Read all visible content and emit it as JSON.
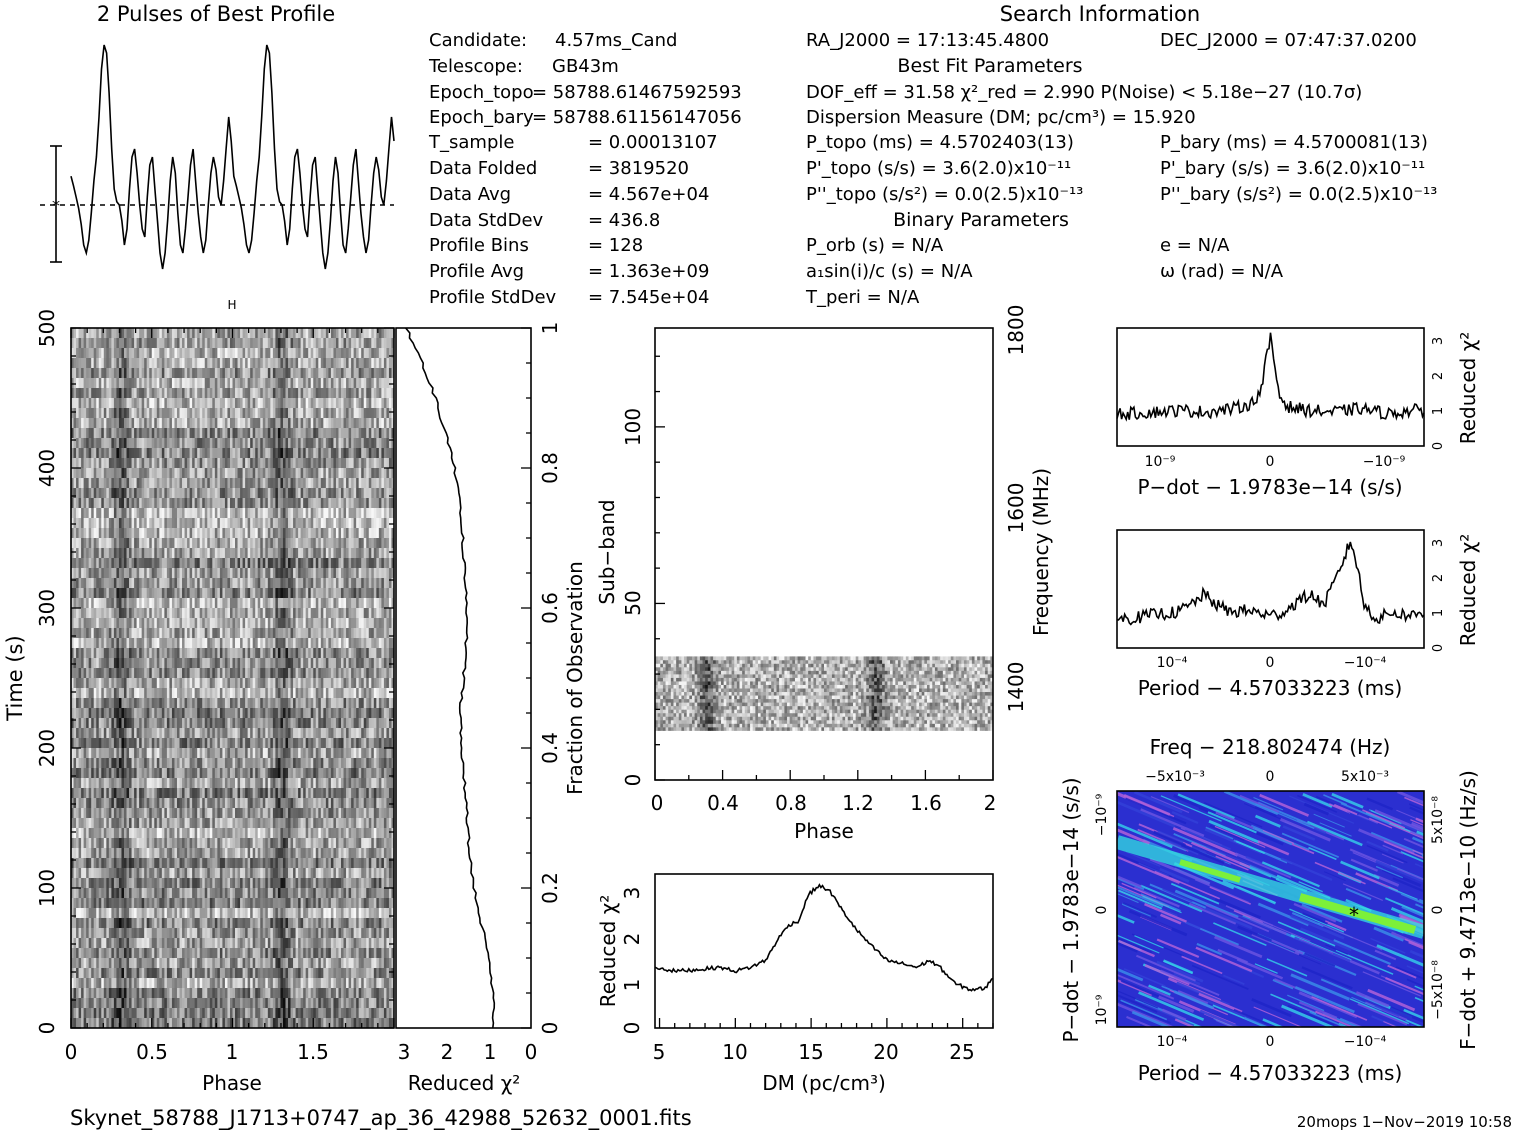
{
  "header": {
    "profile_title": "2 Pulses of Best Profile",
    "search_title": "Search Information",
    "best_fit_title": "Best Fit Parameters",
    "binary_title": "Binary Parameters"
  },
  "info_left": [
    {
      "label": "Candidate:",
      "value": "4.57ms_Cand"
    },
    {
      "label": "Telescope:",
      "value": "GB43m"
    },
    {
      "label": "Epoch_topo",
      "value": "= 58788.61467592593"
    },
    {
      "label": "Epoch_bary",
      "value": "= 58788.61156147056"
    },
    {
      "label": "T_sample",
      "value": "=   0.00013107"
    },
    {
      "label": "Data Folded",
      "value": "=   3819520"
    },
    {
      "label": "Data Avg",
      "value": "=   4.567e+04"
    },
    {
      "label": "Data StdDev",
      "value": "=   436.8"
    },
    {
      "label": "Profile Bins",
      "value": "=   128"
    },
    {
      "label": "Profile Avg",
      "value": "=   1.363e+09"
    },
    {
      "label": "Profile StdDev",
      "value": "=   7.545e+04"
    }
  ],
  "info_mid": {
    "ra": "RA_J2000 = 17:13:45.4800",
    "dof": "DOF_eff = 31.58  χ²_red = 2.990  P(Noise) < 5.18e−27  (10.7σ)",
    "dm": "Dispersion Measure (DM; pc/cm³) = 15.920",
    "p_topo": "P_topo (ms) =  4.5702403(13)",
    "pd_topo": "P'_topo (s/s) =  3.6(2.0)x10⁻¹¹",
    "pdd_topo": "P''_topo (s/s²) = 0.0(2.5)x10⁻¹³",
    "p_orb": "P_orb (s) = N/A",
    "a1sini": "a₁sin(i)/c (s) = N/A",
    "t_peri": "T_peri = N/A"
  },
  "info_right": {
    "dec": "DEC_J2000 = 07:47:37.0200",
    "p_bary": "P_bary (ms) =  4.5700081(13)",
    "pd_bary": "P'_bary (s/s) =  3.6(2.0)x10⁻¹¹",
    "pdd_bary": "P''_bary (s/s²) = 0.0(2.5)x10⁻¹³",
    "e": "e = N/A",
    "omega": "ω (rad) = N/A"
  },
  "footer": {
    "filename": "Skynet_58788_J1713+0747_ap_36_42988_52632_0001.fits",
    "stamp": "20mops   1−Nov−2019  10:58"
  },
  "colors": {
    "ppdot_low": "#2b2fd0",
    "ppdot_mid": "#33e0e0",
    "ppdot_high": "#7cf03a"
  },
  "chart_data": [
    {
      "type": "line",
      "id": "profile",
      "title": "2 Pulses of Best Profile",
      "x": "phase 0–2 (256 samples)",
      "values": [
        0.18,
        0.12,
        0.05,
        -0.02,
        -0.12,
        -0.25,
        -0.3,
        -0.22,
        -0.05,
        0.15,
        0.3,
        0.55,
        0.85,
        1.0,
        0.95,
        0.7,
        0.35,
        0.1,
        0.02,
        0.0,
        -0.1,
        -0.25,
        -0.15,
        0.1,
        0.3,
        0.35,
        0.2,
        0.0,
        -0.15,
        -0.2,
        0.05,
        0.25,
        0.3,
        0.1,
        -0.1,
        -0.3,
        -0.4,
        -0.3,
        -0.1,
        0.15,
        0.3,
        0.2,
        -0.05,
        -0.25,
        -0.3,
        -0.15,
        0.05,
        0.25,
        0.35,
        0.15,
        -0.05,
        -0.2,
        -0.3,
        -0.22,
        0.0,
        0.2,
        0.3,
        0.22,
        0.05,
        0.0,
        0.15,
        0.35,
        0.55,
        0.4,
        0.18,
        0.12,
        0.05,
        -0.02,
        -0.12,
        -0.25,
        -0.3,
        -0.22,
        -0.05,
        0.15,
        0.3,
        0.55,
        0.85,
        1.0,
        0.95,
        0.7,
        0.35,
        0.1,
        0.02,
        0.0,
        -0.1,
        -0.25,
        -0.15,
        0.1,
        0.3,
        0.35,
        0.2,
        0.0,
        -0.15,
        -0.2,
        0.05,
        0.25,
        0.3,
        0.1,
        -0.1,
        -0.3,
        -0.4,
        -0.3,
        -0.1,
        0.15,
        0.3,
        0.2,
        -0.05,
        -0.25,
        -0.3,
        -0.15,
        0.05,
        0.25,
        0.35,
        0.15,
        -0.05,
        -0.2,
        -0.3,
        -0.22,
        0.0,
        0.2,
        0.3,
        0.22,
        0.05,
        0.0,
        0.15,
        0.35,
        0.55,
        0.4
      ]
    },
    {
      "type": "heatmap",
      "id": "time_phase",
      "xlabel": "Phase",
      "ylabel": "Time (s)",
      "xlim": [
        0,
        2
      ],
      "ylim": [
        0,
        500
      ],
      "xticks": [
        "0",
        "0.5",
        "1",
        "1.5"
      ],
      "yticks": [
        "0",
        "100",
        "200",
        "300",
        "400",
        "500"
      ]
    },
    {
      "type": "line",
      "id": "time_chi2",
      "xlabel": "Reduced χ²",
      "ylabel": "Fraction of Observation",
      "xlim": [
        3,
        0
      ],
      "ylim": [
        0,
        1
      ],
      "xticks": [
        "3",
        "2",
        "1",
        "0"
      ],
      "yticks": [
        "0",
        "0.2",
        "0.4",
        "0.6",
        "0.8",
        "1"
      ],
      "frac": [
        0.0,
        0.05,
        0.1,
        0.15,
        0.2,
        0.25,
        0.3,
        0.35,
        0.4,
        0.45,
        0.5,
        0.55,
        0.6,
        0.65,
        0.7,
        0.75,
        0.8,
        0.85,
        0.9,
        0.95,
        1.0
      ],
      "chi2": [
        1.0,
        1.02,
        1.1,
        1.28,
        1.45,
        1.55,
        1.6,
        1.65,
        1.72,
        1.75,
        1.68,
        1.62,
        1.6,
        1.66,
        1.7,
        1.75,
        1.88,
        2.08,
        2.3,
        2.6,
        2.95
      ]
    },
    {
      "type": "heatmap",
      "id": "subband_phase",
      "xlabel": "Phase",
      "ylabel": "Sub−band",
      "y2label": "Frequency (MHz)",
      "xlim": [
        0,
        2
      ],
      "ylim": [
        0,
        128
      ],
      "xticks": [
        "0",
        "0.4",
        "0.8",
        "1.2",
        "1.6",
        "2"
      ],
      "yticks": [
        "0",
        "50",
        "100"
      ],
      "y2ticks": [
        "1400",
        "1600",
        "1800"
      ],
      "active_subbands": [
        14,
        35
      ]
    },
    {
      "type": "line",
      "id": "dm_chi2",
      "xlabel": "DM (pc/cm³)",
      "ylabel": "Reduced χ²",
      "xlim": [
        4.7,
        27
      ],
      "ylim": [
        0,
        3.3
      ],
      "xticks": [
        "5",
        "10",
        "15",
        "20",
        "25"
      ],
      "yticks": [
        "0",
        "1",
        "2",
        "3"
      ],
      "x": [
        4.7,
        6,
        7.5,
        9,
        10,
        11,
        12,
        12.8,
        13.5,
        14.2,
        14.8,
        15.5,
        16.2,
        17,
        18,
        19,
        20,
        21,
        22,
        22.8,
        23.5,
        24.5,
        25.5,
        26.5,
        27
      ],
      "y": [
        1.3,
        1.22,
        1.25,
        1.3,
        1.22,
        1.3,
        1.45,
        1.9,
        2.2,
        2.3,
        2.85,
        3.05,
        2.95,
        2.55,
        2.1,
        1.75,
        1.45,
        1.38,
        1.3,
        1.45,
        1.3,
        0.95,
        0.82,
        0.85,
        1.1
      ]
    },
    {
      "type": "line",
      "id": "pdot_chi2",
      "xlabel": "P−dot − 1.9783e−14 (s/s)",
      "ylabel": "Reduced χ²",
      "xticks": [
        "10⁻⁹",
        "0",
        "−10⁻⁹"
      ],
      "yticks": [
        "0",
        "1",
        "2",
        "3"
      ],
      "ylim": [
        0,
        3.3
      ],
      "x": [
        -1.6,
        -1.3,
        -1,
        -0.7,
        -0.4,
        -0.2,
        -0.1,
        -0.05,
        0,
        0.05,
        0.1,
        0.2,
        0.4,
        0.7,
        1,
        1.3,
        1.6
      ],
      "y": [
        0.9,
        0.95,
        1.0,
        0.95,
        1.05,
        1.2,
        1.6,
        2.4,
        3.0,
        2.2,
        1.4,
        1.1,
        1.0,
        0.95,
        1.05,
        0.9,
        1.0
      ]
    },
    {
      "type": "line",
      "id": "period_chi2",
      "xlabel": "Period − 4.57033223 (ms)",
      "ylabel": "Reduced χ²",
      "xticks": [
        "10⁻⁴",
        "0",
        "−10⁻⁴"
      ],
      "yticks": [
        "0",
        "1",
        "2",
        "3"
      ],
      "ylim": [
        0,
        3.3
      ],
      "x": [
        -2.3,
        -2,
        -1.7,
        -1.4,
        -1.2,
        -1,
        -0.8,
        -0.6,
        -0.4,
        -0.2,
        0,
        0.2,
        0.4,
        0.6,
        0.8,
        1,
        1.1,
        1.2,
        1.3,
        1.4,
        1.6,
        1.8,
        2.1,
        2.3
      ],
      "y": [
        0.8,
        0.85,
        0.95,
        1.0,
        1.2,
        1.5,
        1.2,
        1.0,
        1.05,
        1.0,
        0.9,
        1.0,
        1.3,
        1.5,
        1.2,
        2.0,
        2.5,
        3.0,
        2.3,
        1.2,
        0.8,
        1.0,
        0.9,
        1.0
      ]
    },
    {
      "type": "heatmap",
      "id": "ppdot",
      "title": "Freq − 218.802474 (Hz)",
      "xlabel": "Period − 4.57033223 (ms)",
      "ylabel": "P−dot − 1.9783e−14 (s/s)",
      "y2label": "F−dot + 9.4713e−10 (Hz/s)",
      "xticks": [
        "10⁻⁴",
        "0",
        "−10⁻⁴"
      ],
      "x2ticks": [
        "−5x10⁻³",
        "0",
        "5x10⁻³"
      ],
      "yticks": [
        "10⁻⁹",
        "0",
        "−10⁻⁹"
      ],
      "y2ticks": [
        "−5x10⁻⁸",
        "0",
        "5x10⁻⁸"
      ]
    }
  ]
}
